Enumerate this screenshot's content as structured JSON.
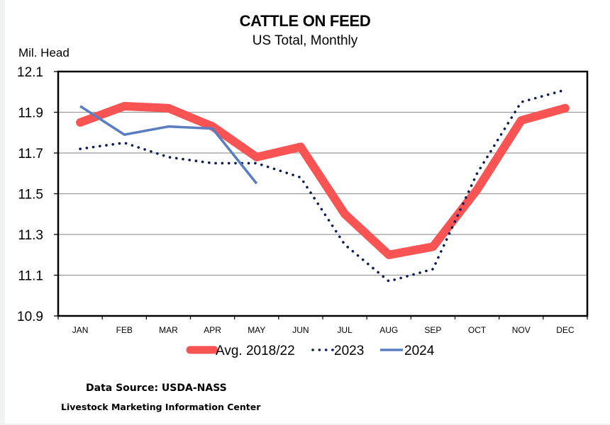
{
  "chart_data": {
    "type": "line",
    "title": "CATTLE ON FEED",
    "subtitle": "US Total, Monthly",
    "ylabel": "Mil. Head",
    "xlabel": "",
    "categories": [
      "JAN",
      "FEB",
      "MAR",
      "APR",
      "MAY",
      "JUN",
      "JUL",
      "AUG",
      "SEP",
      "OCT",
      "NOV",
      "DEC"
    ],
    "ylim": [
      10.9,
      12.1
    ],
    "yticks": [
      10.9,
      11.1,
      11.3,
      11.5,
      11.7,
      11.9,
      12.1
    ],
    "ytick_labels": [
      "10.9",
      "11.1",
      "11.3",
      "11.5",
      "11.7",
      "11.9",
      "12.1"
    ],
    "grid": true,
    "legend_position": "bottom",
    "series": [
      {
        "name": "Avg. 2018/22",
        "style": "thick-solid",
        "color": "#F95353",
        "values": [
          11.85,
          11.93,
          11.92,
          11.83,
          11.68,
          11.73,
          11.4,
          11.2,
          11.24,
          11.52,
          11.86,
          11.92
        ]
      },
      {
        "name": "2023",
        "style": "dotted",
        "color": "#0E1A55",
        "values": [
          11.72,
          11.75,
          11.68,
          11.65,
          11.65,
          11.58,
          11.25,
          11.07,
          11.13,
          11.6,
          11.95,
          12.01
        ]
      },
      {
        "name": "2024",
        "style": "solid",
        "color": "#5A7EC0",
        "values": [
          11.93,
          11.79,
          11.83,
          11.82,
          11.55,
          null,
          null,
          null,
          null,
          null,
          null,
          null
        ]
      }
    ]
  },
  "footer": {
    "source": "Data Source:  USDA-NASS",
    "organization": "Livestock Marketing Information Center"
  }
}
